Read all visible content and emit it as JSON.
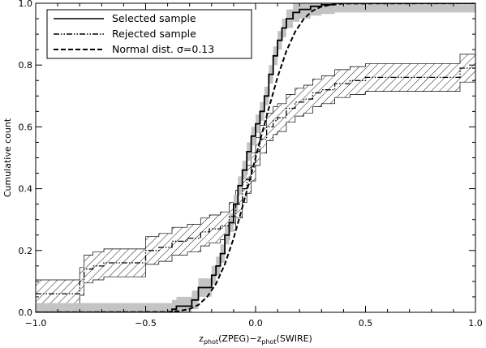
{
  "chart_data": {
    "type": "line",
    "xlabel": {
      "main": "z",
      "sub1": "phot",
      "mid": "(ZPEG)−z",
      "sub2": "phot",
      "tail": "(SWIRE)"
    },
    "ylabel": "Cumulative count",
    "xlim": [
      -1.0,
      1.0
    ],
    "ylim": [
      0.0,
      1.0
    ],
    "xticks": [
      -1.0,
      -0.5,
      0.0,
      0.5,
      1.0
    ],
    "xtick_labels": [
      "−1.0",
      "−0.5",
      "0.0",
      "0.5",
      "1.0"
    ],
    "yticks": [
      0.0,
      0.2,
      0.4,
      0.6,
      0.8,
      1.0
    ],
    "ytick_labels": [
      "0.0",
      "0.2",
      "0.4",
      "0.6",
      "0.8",
      "1.0"
    ],
    "grid": false,
    "legend_position": "top-left",
    "legend": [
      {
        "label": "Selected sample",
        "style": "solid"
      },
      {
        "label": "Rejected sample",
        "style": "dash-dot-dot"
      },
      {
        "label": "Normal dist. σ=0.13",
        "style": "dashed"
      }
    ],
    "series": [
      {
        "name": "Selected sample",
        "style": "solid",
        "step": true,
        "band": "gray-filled",
        "band_halfwidth": 0.03,
        "x": [
          -1.0,
          -0.38,
          -0.38,
          -0.36,
          -0.36,
          -0.29,
          -0.29,
          -0.26,
          -0.26,
          -0.2,
          -0.2,
          -0.18,
          -0.18,
          -0.16,
          -0.16,
          -0.14,
          -0.14,
          -0.12,
          -0.12,
          -0.1,
          -0.1,
          -0.08,
          -0.08,
          -0.06,
          -0.06,
          -0.04,
          -0.04,
          -0.02,
          -0.02,
          0.0,
          0.0,
          0.02,
          0.02,
          0.04,
          0.04,
          0.06,
          0.06,
          0.08,
          0.08,
          0.1,
          0.1,
          0.12,
          0.12,
          0.14,
          0.14,
          0.17,
          0.17,
          0.2,
          0.2,
          0.25,
          0.25,
          0.3,
          0.3,
          0.36,
          0.36,
          1.0
        ],
        "y": [
          0.0,
          0.0,
          0.01,
          0.01,
          0.02,
          0.02,
          0.04,
          0.04,
          0.08,
          0.08,
          0.12,
          0.12,
          0.15,
          0.15,
          0.19,
          0.19,
          0.25,
          0.25,
          0.29,
          0.29,
          0.35,
          0.35,
          0.41,
          0.41,
          0.46,
          0.46,
          0.52,
          0.52,
          0.57,
          0.57,
          0.61,
          0.61,
          0.65,
          0.65,
          0.7,
          0.7,
          0.77,
          0.77,
          0.83,
          0.83,
          0.88,
          0.88,
          0.92,
          0.92,
          0.95,
          0.95,
          0.97,
          0.97,
          0.98,
          0.98,
          0.99,
          0.99,
          0.995,
          0.995,
          1.0,
          1.0
        ]
      },
      {
        "name": "Rejected sample",
        "style": "dash-dot-dot",
        "step": true,
        "band": "hatched",
        "band_halfwidth": 0.045,
        "x": [
          -1.0,
          -0.8,
          -0.8,
          -0.78,
          -0.78,
          -0.74,
          -0.74,
          -0.69,
          -0.69,
          -0.5,
          -0.5,
          -0.44,
          -0.44,
          -0.38,
          -0.38,
          -0.31,
          -0.31,
          -0.25,
          -0.25,
          -0.21,
          -0.21,
          -0.16,
          -0.16,
          -0.12,
          -0.12,
          -0.09,
          -0.09,
          -0.06,
          -0.06,
          -0.04,
          -0.04,
          -0.02,
          -0.02,
          0.0,
          0.0,
          0.02,
          0.02,
          0.05,
          0.05,
          0.08,
          0.08,
          0.1,
          0.1,
          0.14,
          0.14,
          0.18,
          0.18,
          0.22,
          0.22,
          0.26,
          0.26,
          0.3,
          0.3,
          0.36,
          0.36,
          0.43,
          0.43,
          0.5,
          0.5,
          0.93,
          0.93,
          1.0
        ],
        "y": [
          0.06,
          0.06,
          0.1,
          0.1,
          0.14,
          0.14,
          0.15,
          0.15,
          0.16,
          0.16,
          0.2,
          0.2,
          0.21,
          0.21,
          0.23,
          0.23,
          0.24,
          0.24,
          0.26,
          0.26,
          0.27,
          0.27,
          0.28,
          0.28,
          0.31,
          0.31,
          0.35,
          0.35,
          0.4,
          0.4,
          0.43,
          0.43,
          0.47,
          0.47,
          0.52,
          0.52,
          0.56,
          0.56,
          0.6,
          0.6,
          0.62,
          0.62,
          0.63,
          0.63,
          0.66,
          0.66,
          0.68,
          0.68,
          0.69,
          0.69,
          0.71,
          0.71,
          0.72,
          0.72,
          0.74,
          0.74,
          0.75,
          0.75,
          0.76,
          0.76,
          0.79,
          0.79
        ]
      },
      {
        "name": "Normal dist. σ=0.13",
        "style": "dashed",
        "step": false,
        "x": [
          -1.0,
          -0.4,
          -0.35,
          -0.3,
          -0.26,
          -0.22,
          -0.18,
          -0.14,
          -0.1,
          -0.06,
          -0.02,
          0.0,
          0.02,
          0.06,
          0.1,
          0.14,
          0.18,
          0.22,
          0.26,
          0.3,
          0.35,
          0.4,
          1.0
        ],
        "y": [
          0.0,
          0.001,
          0.004,
          0.011,
          0.024,
          0.05,
          0.092,
          0.155,
          0.239,
          0.34,
          0.446,
          0.5,
          0.554,
          0.66,
          0.761,
          0.845,
          0.908,
          0.95,
          0.976,
          0.989,
          0.996,
          0.999,
          1.0
        ]
      }
    ]
  }
}
